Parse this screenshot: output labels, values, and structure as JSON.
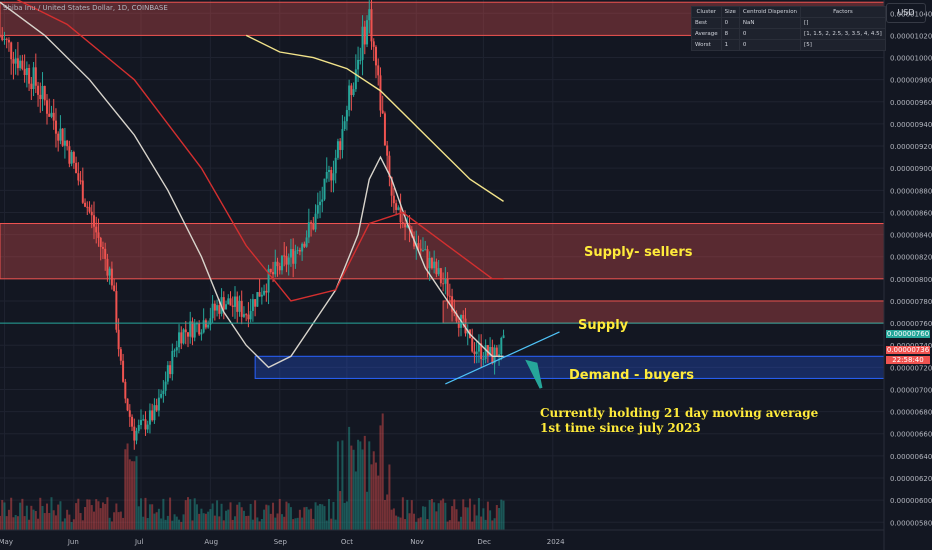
{
  "title": "Shiba Inu / United States Dollar, 1D, COINBASE",
  "currency_button": "USD",
  "cluster_table": {
    "headers": [
      "Cluster",
      "Size",
      "Centroid Dispersion",
      "Factors"
    ],
    "rows": [
      [
        "Best",
        "0",
        "NaN",
        "[]"
      ],
      [
        "Average",
        "8",
        "0",
        "[1, 1.5, 2, 2.5, 3, 3.5, 4, 4.5]"
      ],
      [
        "Worst",
        "1",
        "0",
        "[5]"
      ]
    ]
  },
  "annotations": {
    "supply_sellers": "Supply- sellers",
    "supply": "Supply",
    "demand": "Demand - buyers",
    "holding_line1": "Currently holding 21 day moving average",
    "holding_line2": "1st time since july 2023"
  },
  "price_tags": {
    "green_price": "0.00000760",
    "red_price": "0.00000736",
    "countdown": "22:58:40"
  },
  "colors": {
    "background": "#131722",
    "bull": "#26a69a",
    "bear": "#ef5350",
    "supply_zone": "#ef5350",
    "demand_zone": "#2962ff",
    "ma_white": "#d8d4cc",
    "ma_yellow": "#f2e38a",
    "annotation": "#ffeb3b"
  },
  "chart_data": {
    "type": "candlestick",
    "title": "Shiba Inu / United States Dollar, 1D, COINBASE",
    "x_ticks": [
      "May",
      "Jun",
      "Jul",
      "Aug",
      "Sep",
      "Oct",
      "Nov",
      "Dec",
      "2024"
    ],
    "y_ticks": [
      "0.00001040",
      "0.00001020",
      "0.00001000",
      "0.00000980",
      "0.00000960",
      "0.00000940",
      "0.00000920",
      "0.00000900",
      "0.00000880",
      "0.00000860",
      "0.00000840",
      "0.00000820",
      "0.00000800",
      "0.00000780",
      "0.00000760",
      "0.00000740",
      "0.00000720",
      "0.00000700",
      "0.00000680",
      "0.00000660",
      "0.00000640",
      "0.00000620",
      "0.00000600",
      "0.00000580"
    ],
    "ylim": [
      5.73e-06,
      1.052e-05
    ],
    "series": [
      {
        "name": "ma_white",
        "points": [
          [
            0,
            1.05e-05
          ],
          [
            20,
            1.02e-05
          ],
          [
            40,
            9.8e-06
          ],
          [
            60,
            9.3e-06
          ],
          [
            75,
            8.8e-06
          ],
          [
            90,
            8.2e-06
          ],
          [
            100,
            7.7e-06
          ],
          [
            110,
            7.4e-06
          ],
          [
            120,
            7.2e-06
          ],
          [
            130,
            7.3e-06
          ],
          [
            140,
            7.6e-06
          ],
          [
            150,
            7.9e-06
          ],
          [
            160,
            8.4e-06
          ],
          [
            165,
            8.9e-06
          ],
          [
            170,
            9.1e-06
          ],
          [
            175,
            8.9e-06
          ],
          [
            182,
            8.5e-06
          ],
          [
            190,
            8.1e-06
          ],
          [
            200,
            7.8e-06
          ],
          [
            210,
            7.5e-06
          ],
          [
            220,
            7.3e-06
          ],
          [
            225,
            7.3e-06
          ]
        ]
      },
      {
        "name": "ma_yellow",
        "points": [
          [
            110,
            1.02e-05
          ],
          [
            125,
            1.005e-05
          ],
          [
            140,
            1e-05
          ],
          [
            155,
            9.9e-06
          ],
          [
            170,
            9.7e-06
          ],
          [
            185,
            9.4e-06
          ],
          [
            200,
            9.1e-06
          ],
          [
            210,
            8.9e-06
          ],
          [
            225,
            8.7e-06
          ]
        ]
      },
      {
        "name": "ma_red",
        "points": [
          [
            0,
            1.06e-05
          ],
          [
            30,
            1.03e-05
          ],
          [
            60,
            9.8e-06
          ],
          [
            90,
            9e-06
          ],
          [
            110,
            8.3e-06
          ],
          [
            130,
            7.8e-06
          ],
          [
            150,
            7.9e-06
          ],
          [
            165,
            8.5e-06
          ],
          [
            180,
            8.6e-06
          ],
          [
            200,
            8.3e-06
          ],
          [
            220,
            8e-06
          ],
          [
            225,
            8e-06
          ]
        ]
      }
    ],
    "zones": [
      {
        "name": "supply_top",
        "kind": "supply",
        "y0": 1.02e-05,
        "y1": 1.05e-05
      },
      {
        "name": "supply_sellers",
        "kind": "supply",
        "y0": 8e-06,
        "y1": 8.5e-06
      },
      {
        "name": "supply",
        "kind": "supply",
        "y0": 7.6e-06,
        "y1": 7.8e-06
      },
      {
        "name": "demand",
        "kind": "demand",
        "y0": 7.1e-06,
        "y1": 7.3e-06
      }
    ]
  }
}
